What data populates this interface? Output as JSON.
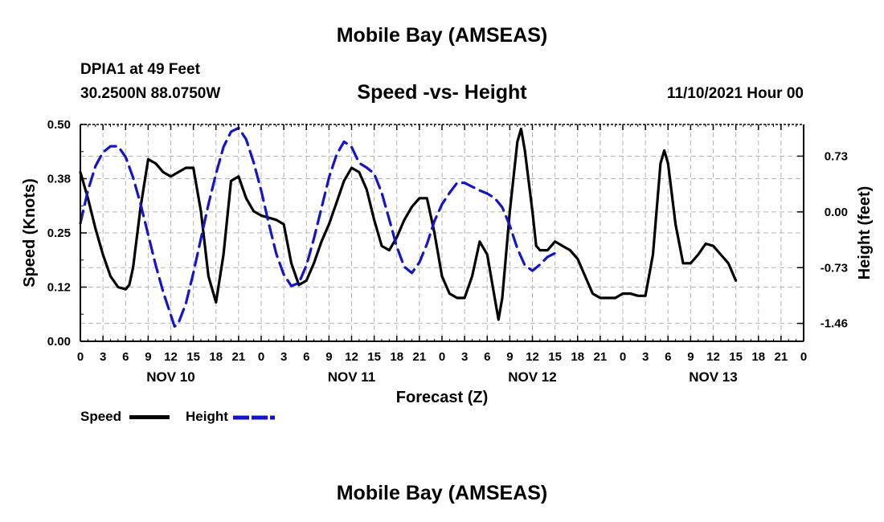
{
  "header": {
    "title": "Mobile Bay (AMSEAS)",
    "station_line1": "DPIA1 at 49 Feet",
    "station_line2": "30.2500N  88.0750W",
    "subtitle": "Speed -vs- Height",
    "date": "11/10/2021 Hour 00"
  },
  "footer": {
    "title": "Mobile Bay (AMSEAS)"
  },
  "colors": {
    "speed": "#000000",
    "height": "#1515c8",
    "grid": "#b4b4b4"
  },
  "chart_data": {
    "type": "line",
    "title": "Speed -vs- Height",
    "xlabel": "Forecast (Z)",
    "ylabel": "Speed (Knots)",
    "y2label": "Height (feet)",
    "xlim": [
      0,
      96
    ],
    "ylim": [
      0,
      0.5
    ],
    "y2lim": [
      -1.695,
      1.145
    ],
    "x_tick_step": 3,
    "x_tick_labels": [
      "0",
      "3",
      "6",
      "9",
      "12",
      "15",
      "18",
      "21",
      "0",
      "3",
      "6",
      "9",
      "12",
      "15",
      "18",
      "21",
      "0",
      "3",
      "6",
      "9",
      "12",
      "15",
      "18",
      "21",
      "0",
      "3",
      "6",
      "9",
      "12",
      "15",
      "18",
      "21",
      "0"
    ],
    "day_labels": [
      {
        "x": 12,
        "label": "NOV 10"
      },
      {
        "x": 36,
        "label": "NOV 11"
      },
      {
        "x": 60,
        "label": "NOV 12"
      },
      {
        "x": 84,
        "label": "NOV 13"
      }
    ],
    "y_ticks": [
      {
        "value": 0.0,
        "label": "0.00"
      },
      {
        "value": 0.125,
        "label": "0.12"
      },
      {
        "value": 0.25,
        "label": "0.25"
      },
      {
        "value": 0.375,
        "label": "0.38"
      },
      {
        "value": 0.5,
        "label": "0.50"
      }
    ],
    "y2_ticks": [
      {
        "value": 0.73,
        "label": "0.73"
      },
      {
        "value": 0.0,
        "label": "0.00"
      },
      {
        "value": -0.73,
        "label": "-0.73"
      },
      {
        "value": -1.46,
        "label": "-1.46"
      }
    ],
    "grid": true,
    "legend": [
      {
        "name": "Speed",
        "style": "solid"
      },
      {
        "name": "Height",
        "style": "dashed"
      }
    ],
    "series": [
      {
        "name": "Speed",
        "axis": "left",
        "style": "solid",
        "points": [
          [
            0,
            0.39
          ],
          [
            1,
            0.33
          ],
          [
            2,
            0.26
          ],
          [
            3,
            0.2
          ],
          [
            4,
            0.15
          ],
          [
            5,
            0.125
          ],
          [
            6,
            0.12
          ],
          [
            6.5,
            0.13
          ],
          [
            7,
            0.17
          ],
          [
            8,
            0.31
          ],
          [
            9,
            0.42
          ],
          [
            10,
            0.41
          ],
          [
            11,
            0.39
          ],
          [
            12,
            0.38
          ],
          [
            13,
            0.39
          ],
          [
            14,
            0.4
          ],
          [
            15,
            0.4
          ],
          [
            16,
            0.3
          ],
          [
            17,
            0.15
          ],
          [
            18,
            0.09
          ],
          [
            19,
            0.2
          ],
          [
            20,
            0.37
          ],
          [
            21,
            0.38
          ],
          [
            22,
            0.33
          ],
          [
            23,
            0.3
          ],
          [
            24,
            0.29
          ],
          [
            25,
            0.285
          ],
          [
            26,
            0.28
          ],
          [
            27,
            0.27
          ],
          [
            28,
            0.18
          ],
          [
            29,
            0.13
          ],
          [
            30,
            0.14
          ],
          [
            31,
            0.18
          ],
          [
            32,
            0.23
          ],
          [
            33,
            0.27
          ],
          [
            34,
            0.32
          ],
          [
            35,
            0.37
          ],
          [
            36,
            0.4
          ],
          [
            37,
            0.39
          ],
          [
            38,
            0.35
          ],
          [
            39,
            0.28
          ],
          [
            40,
            0.22
          ],
          [
            41,
            0.21
          ],
          [
            42,
            0.24
          ],
          [
            43,
            0.28
          ],
          [
            44,
            0.31
          ],
          [
            45,
            0.33
          ],
          [
            46,
            0.33
          ],
          [
            47,
            0.25
          ],
          [
            48,
            0.15
          ],
          [
            49,
            0.11
          ],
          [
            50,
            0.1
          ],
          [
            51,
            0.1
          ],
          [
            52,
            0.15
          ],
          [
            53,
            0.23
          ],
          [
            54,
            0.2
          ],
          [
            55,
            0.1
          ],
          [
            55.5,
            0.05
          ],
          [
            56,
            0.1
          ],
          [
            57,
            0.3
          ],
          [
            58,
            0.46
          ],
          [
            58.5,
            0.49
          ],
          [
            59,
            0.44
          ],
          [
            60,
            0.3
          ],
          [
            60.5,
            0.22
          ],
          [
            61,
            0.21
          ],
          [
            62,
            0.21
          ],
          [
            63,
            0.23
          ],
          [
            64,
            0.22
          ],
          [
            65,
            0.21
          ],
          [
            66,
            0.19
          ],
          [
            67,
            0.15
          ],
          [
            68,
            0.11
          ],
          [
            69,
            0.1
          ],
          [
            70,
            0.1
          ],
          [
            71,
            0.1
          ],
          [
            72,
            0.11
          ],
          [
            73,
            0.11
          ],
          [
            74,
            0.105
          ],
          [
            75,
            0.105
          ],
          [
            76,
            0.2
          ],
          [
            77,
            0.41
          ],
          [
            77.5,
            0.44
          ],
          [
            78,
            0.41
          ],
          [
            79,
            0.27
          ],
          [
            80,
            0.18
          ],
          [
            81,
            0.18
          ],
          [
            82,
            0.2
          ],
          [
            83,
            0.225
          ],
          [
            84,
            0.22
          ],
          [
            85,
            0.2
          ],
          [
            86,
            0.18
          ],
          [
            87,
            0.14
          ]
        ]
      },
      {
        "name": "Height",
        "axis": "right",
        "style": "dashed",
        "points": [
          [
            0,
            -0.15
          ],
          [
            1,
            0.28
          ],
          [
            2,
            0.6
          ],
          [
            3,
            0.78
          ],
          [
            4,
            0.86
          ],
          [
            5,
            0.86
          ],
          [
            6,
            0.72
          ],
          [
            7,
            0.45
          ],
          [
            8,
            0.1
          ],
          [
            9,
            -0.3
          ],
          [
            10,
            -0.7
          ],
          [
            11,
            -1.05
          ],
          [
            12,
            -1.35
          ],
          [
            12.5,
            -1.5
          ],
          [
            13,
            -1.46
          ],
          [
            14,
            -1.2
          ],
          [
            15,
            -0.8
          ],
          [
            16,
            -0.35
          ],
          [
            17,
            0.1
          ],
          [
            18,
            0.5
          ],
          [
            19,
            0.85
          ],
          [
            20,
            1.05
          ],
          [
            21,
            1.1
          ],
          [
            22,
            0.95
          ],
          [
            23,
            0.65
          ],
          [
            24,
            0.28
          ],
          [
            25,
            -0.15
          ],
          [
            26,
            -0.55
          ],
          [
            27,
            -0.82
          ],
          [
            28,
            -0.97
          ],
          [
            29,
            -0.93
          ],
          [
            30,
            -0.7
          ],
          [
            31,
            -0.35
          ],
          [
            32,
            0.05
          ],
          [
            33,
            0.45
          ],
          [
            34,
            0.75
          ],
          [
            35,
            0.92
          ],
          [
            36,
            0.85
          ],
          [
            37,
            0.64
          ],
          [
            38,
            0.58
          ],
          [
            39,
            0.5
          ],
          [
            40,
            0.25
          ],
          [
            41,
            -0.1
          ],
          [
            42,
            -0.46
          ],
          [
            43,
            -0.72
          ],
          [
            44,
            -0.8
          ],
          [
            45,
            -0.66
          ],
          [
            46,
            -0.42
          ],
          [
            47,
            -0.12
          ],
          [
            48,
            0.1
          ],
          [
            49,
            0.25
          ],
          [
            50,
            0.38
          ],
          [
            51,
            0.38
          ],
          [
            52,
            0.33
          ],
          [
            53,
            0.28
          ],
          [
            54,
            0.24
          ],
          [
            55,
            0.18
          ],
          [
            56,
            0.06
          ],
          [
            57,
            -0.18
          ],
          [
            58,
            -0.48
          ],
          [
            59,
            -0.7
          ],
          [
            60,
            -0.77
          ],
          [
            61,
            -0.69
          ],
          [
            62,
            -0.59
          ],
          [
            63,
            -0.54
          ]
        ]
      }
    ]
  }
}
